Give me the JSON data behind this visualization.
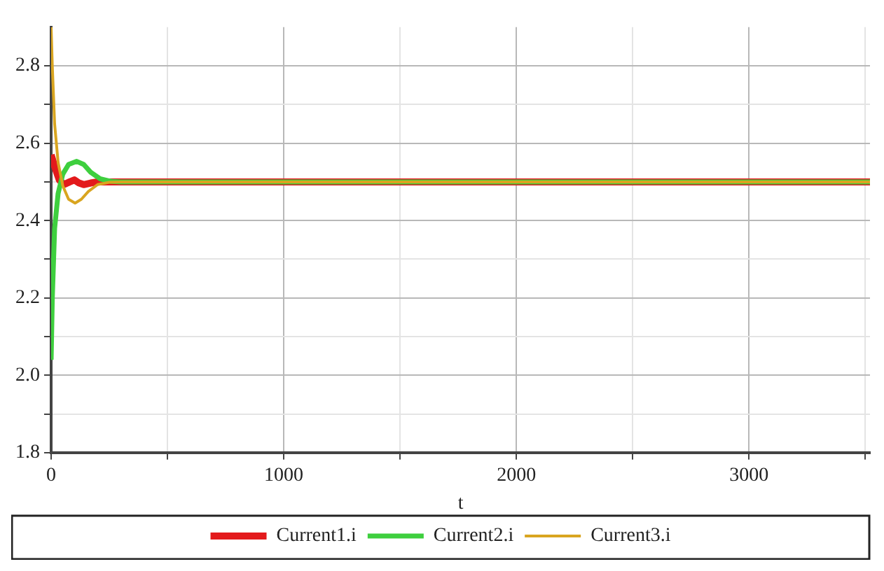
{
  "chart_data": {
    "type": "line",
    "xlabel": "t",
    "xlim": [
      0,
      3520
    ],
    "xticks": [
      0,
      {
        "value": 500,
        "label": null
      },
      1000,
      {
        "value": 1500,
        "label": null
      },
      2000,
      {
        "value": 2500,
        "label": null
      },
      3000,
      {
        "value": 3500,
        "label": null
      }
    ],
    "ylim": [
      1.8,
      2.9
    ],
    "yticks": [
      1.8,
      {
        "value": 1.9,
        "label": null
      },
      {
        "value": 2,
        "label": "2.0"
      },
      {
        "value": 2.1,
        "label": null
      },
      2.2,
      {
        "value": 2.3,
        "label": null
      },
      2.4,
      {
        "value": 2.5,
        "label": null
      },
      2.6,
      {
        "value": 2.7,
        "label": null
      },
      2.8
    ],
    "grid": true,
    "legend": "bottom",
    "marker": "none",
    "line_style": "solid",
    "series": [
      {
        "name": "Current1.i",
        "color": "#e31a1c",
        "x": [
          0,
          15,
          35,
          55,
          80,
          100,
          120,
          140,
          170,
          200,
          3520
        ],
        "values": [
          2.57,
          2.54,
          2.505,
          2.493,
          2.5,
          2.505,
          2.497,
          2.493,
          2.497,
          2.5,
          2.5
        ]
      },
      {
        "name": "Current2.i",
        "color": "#3ecf3e",
        "x": [
          0,
          5,
          15,
          30,
          50,
          75,
          110,
          140,
          170,
          210,
          260,
          300,
          3520
        ],
        "values": [
          2.04,
          2.2,
          2.38,
          2.47,
          2.52,
          2.545,
          2.553,
          2.545,
          2.525,
          2.508,
          2.501,
          2.5,
          2.5
        ]
      },
      {
        "name": "Current3.i",
        "color": "#d9a520",
        "x": [
          0,
          5,
          15,
          30,
          50,
          75,
          103,
          130,
          160,
          200,
          250,
          300,
          3520
        ],
        "values": [
          2.9,
          2.8,
          2.65,
          2.55,
          2.49,
          2.455,
          2.445,
          2.455,
          2.475,
          2.493,
          2.499,
          2.5,
          2.5
        ]
      }
    ]
  }
}
